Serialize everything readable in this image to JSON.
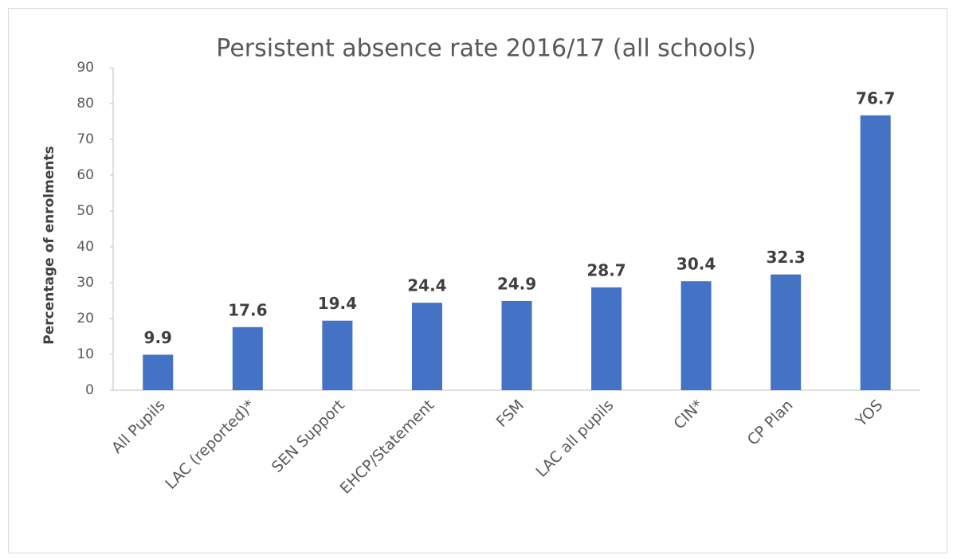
{
  "chart_data": {
    "type": "bar",
    "title": "Persistent absence rate 2016/17 (all schools)",
    "ylabel": "Percentage of enrolments",
    "categories": [
      "All Pupils",
      "LAC (reported)*",
      "SEN Support",
      "EHCP/Statement",
      "FSM",
      "LAC all pupils",
      "CIN*",
      "CP Plan",
      "YOS"
    ],
    "values": [
      9.9,
      17.6,
      19.4,
      24.4,
      24.9,
      28.7,
      30.4,
      32.3,
      76.7
    ],
    "color": "#4472c4",
    "ylim": [
      0,
      90
    ],
    "yticks": [
      0,
      10,
      20,
      30,
      40,
      50,
      60,
      70,
      80,
      90
    ],
    "grid": false
  }
}
